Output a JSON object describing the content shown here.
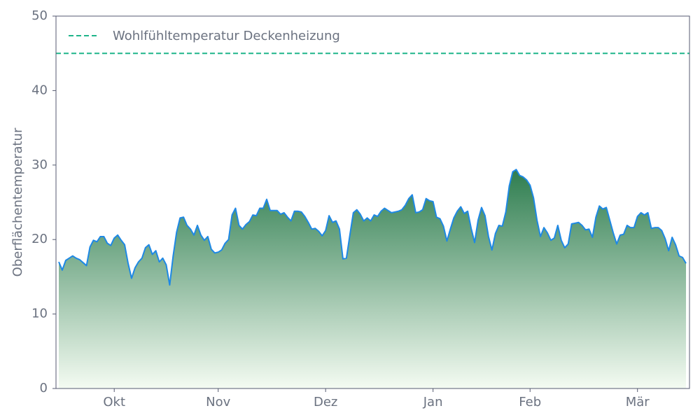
{
  "chart_data": {
    "type": "area",
    "ylabel": "Oberflächentemperatur",
    "ylim": [
      0,
      50
    ],
    "yticks": [
      0,
      10,
      20,
      30,
      40,
      50
    ],
    "categories": [
      null,
      null,
      null,
      null,
      null,
      null,
      null,
      null,
      null,
      null,
      null,
      null,
      null,
      null,
      null,
      null,
      "Okt",
      null,
      null,
      null,
      null,
      null,
      null,
      null,
      null,
      null,
      null,
      null,
      null,
      null,
      null,
      null,
      null,
      null,
      null,
      null,
      null,
      null,
      null,
      null,
      null,
      null,
      null,
      null,
      null,
      null,
      "Nov",
      null,
      null,
      null,
      null,
      null,
      null,
      null,
      null,
      null,
      null,
      null,
      null,
      null,
      null,
      null,
      null,
      null,
      null,
      null,
      null,
      null,
      null,
      null,
      null,
      null,
      null,
      null,
      null,
      null,
      null,
      "Dez",
      null,
      null,
      null,
      null,
      null,
      null,
      null,
      null,
      null,
      null,
      null,
      null,
      null,
      null,
      null,
      null,
      null,
      null,
      null,
      null,
      null,
      null,
      null,
      null,
      null,
      null,
      null,
      null,
      null,
      null,
      "Jan",
      null,
      null,
      null,
      null,
      null,
      null,
      null,
      null,
      null,
      null,
      null,
      null,
      null,
      null,
      null,
      null,
      null,
      null,
      null,
      null,
      null,
      null,
      null,
      null,
      null,
      null,
      null,
      "Feb",
      null,
      null,
      null,
      null,
      null,
      null,
      null,
      null,
      null,
      null,
      null,
      null,
      null,
      null,
      null,
      null,
      null,
      null,
      null,
      null,
      null,
      null,
      null,
      null,
      null,
      null,
      null,
      null,
      null,
      null,
      "Mär",
      null,
      null,
      null,
      null,
      null,
      null,
      null,
      null,
      null,
      null,
      null,
      null,
      null,
      null
    ],
    "values": [
      17,
      15.9,
      17.2,
      17.5,
      17.8,
      17.5,
      17.3,
      16.9,
      16.5,
      19,
      19.9,
      19.7,
      20.4,
      20.4,
      19.5,
      19.2,
      20.2,
      20.6,
      19.9,
      19.3,
      16.8,
      14.8,
      16.2,
      17,
      17.5,
      18.9,
      19.3,
      18,
      18.5,
      17,
      17.5,
      16.6,
      13.9,
      17.8,
      21,
      22.9,
      23,
      21.9,
      21.4,
      20.6,
      21.9,
      20.6,
      19.9,
      20.4,
      18.7,
      18.2,
      18.3,
      18.6,
      19.5,
      20,
      23.3,
      24.2,
      21.9,
      21.4,
      22,
      22.4,
      23.3,
      23.2,
      24.2,
      24.2,
      25.4,
      23.9,
      23.9,
      23.9,
      23.4,
      23.6,
      23,
      22.5,
      23.8,
      23.8,
      23.7,
      23.1,
      22.3,
      21.4,
      21.5,
      21.1,
      20.5,
      21.2,
      23.2,
      22.3,
      22.5,
      21.4,
      17.4,
      17.5,
      20.6,
      23.6,
      24,
      23.4,
      22.5,
      22.9,
      22.5,
      23.3,
      23.1,
      23.8,
      24.2,
      23.9,
      23.6,
      23.7,
      23.8,
      24,
      24.6,
      25.5,
      26,
      23.6,
      23.7,
      24,
      25.5,
      25.2,
      25.1,
      23,
      22.8,
      21.8,
      19.8,
      21.4,
      22.9,
      23.8,
      24.4,
      23.5,
      23.8,
      21.5,
      19.6,
      22.6,
      24.3,
      23.2,
      20.4,
      18.6,
      20.8,
      21.9,
      21.8,
      23.7,
      27.2,
      29.1,
      29.4,
      28.6,
      28.4,
      28,
      27.3,
      25.6,
      22.6,
      20.4,
      21.6,
      20.9,
      19.9,
      20.2,
      21.9,
      19.9,
      18.9,
      19.4,
      22.1,
      22.2,
      22.3,
      21.9,
      21.3,
      21.4,
      20.3,
      23,
      24.5,
      24.1,
      24.3,
      22.6,
      20.9,
      19.4,
      20.6,
      20.7,
      21.9,
      21.6,
      21.6,
      23.1,
      23.6,
      23.3,
      23.6,
      21.5,
      21.6,
      21.6,
      21.2,
      20.1,
      18.5,
      20.3,
      19.3,
      17.8,
      17.6,
      16.8
    ],
    "color": "#1e88e5",
    "fill_top": "#2e7d4f",
    "fill_bottom": "#f4fbf2",
    "reference_lines": [
      {
        "value": 45,
        "label": "Wohlfühltemperatur Deckenheizung",
        "color": "#1fb58a"
      }
    ]
  }
}
